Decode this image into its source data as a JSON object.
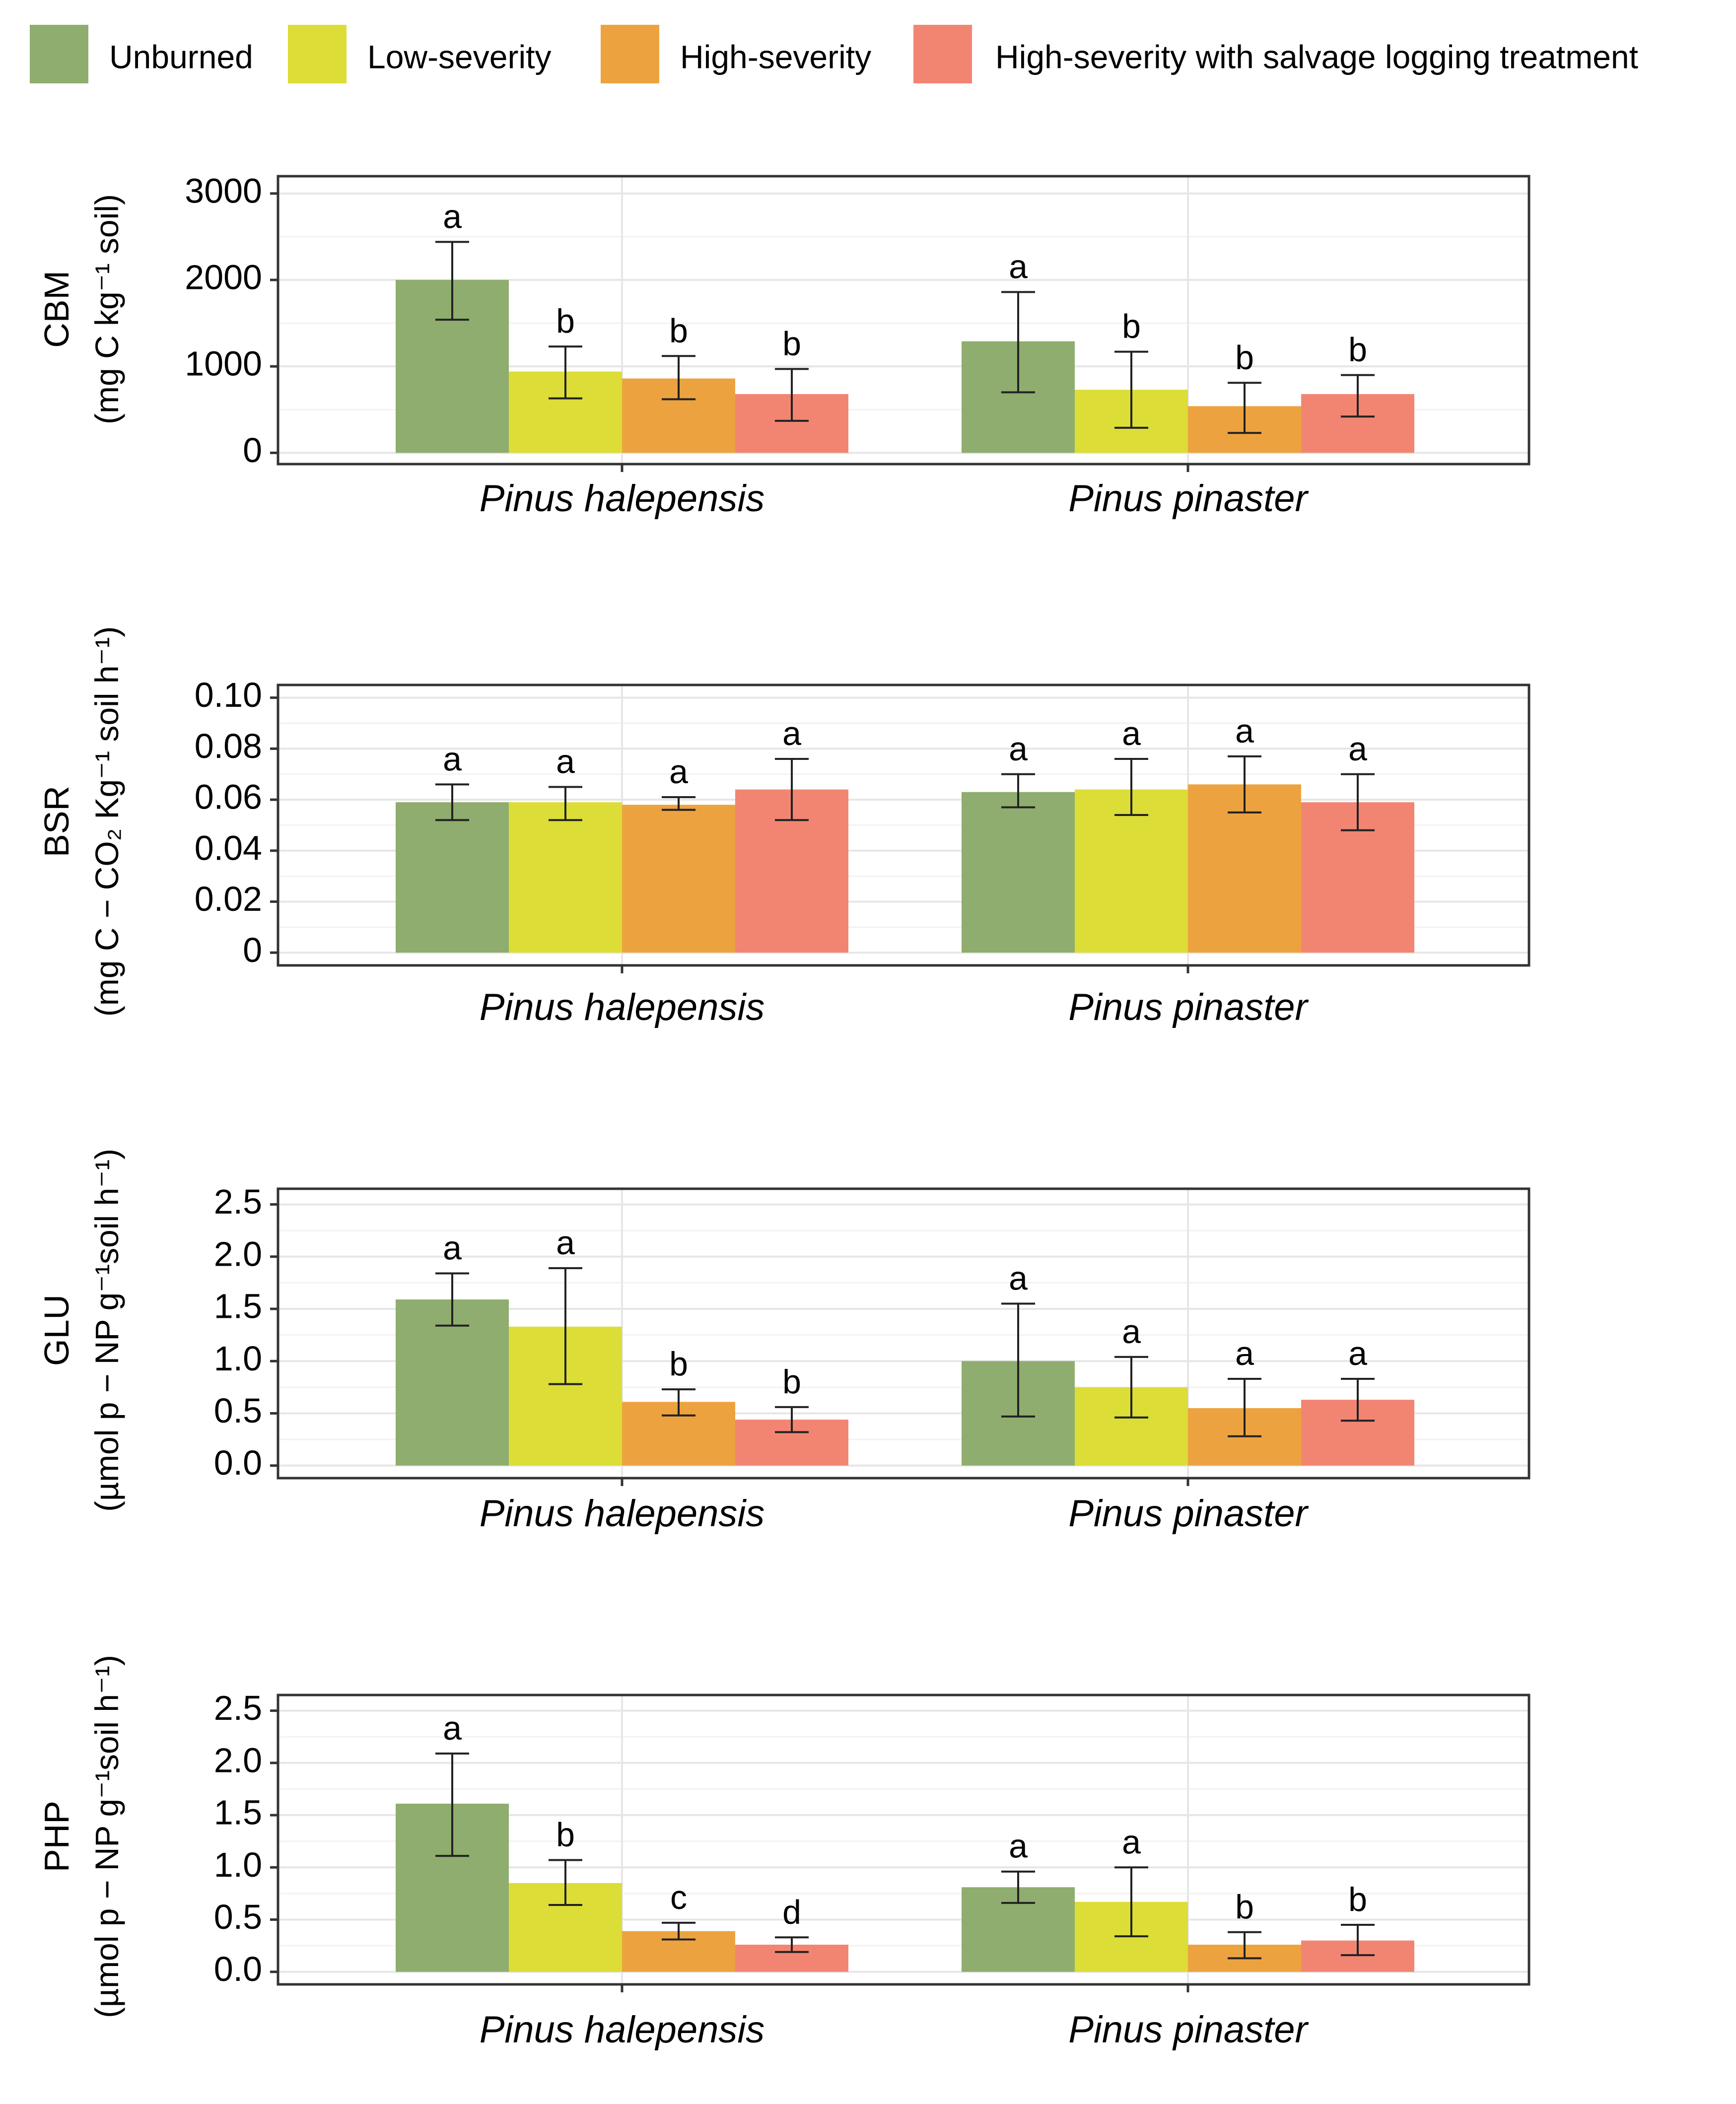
{
  "legend": [
    {
      "label": "Unburned",
      "color": "#8fad6e"
    },
    {
      "label": "Low-severity",
      "color": "#dcdd36"
    },
    {
      "label": "High-severity",
      "color": "#eca33f"
    },
    {
      "label": "High-severity with salvage logging treatment",
      "color": "#f28572"
    }
  ],
  "chart_data": [
    {
      "type": "bar",
      "ylabel_main": "CBM",
      "ylabel_unit": "(mg C kg⁻¹ soil)",
      "ylim": [
        -130,
        3200
      ],
      "yticks": [
        0,
        1000,
        2000,
        3000
      ],
      "ytick_labels": [
        "0",
        "1000",
        "2000",
        "3000"
      ],
      "categories": [
        "Pinus halepensis",
        "Pinus pinaster"
      ],
      "series": [
        {
          "name": "Unburned",
          "values": [
            2000,
            1290
          ],
          "err_low": [
            1540,
            700
          ],
          "err_high": [
            2440,
            1860
          ],
          "letters": [
            "a",
            "a"
          ]
        },
        {
          "name": "Low-severity",
          "values": [
            940,
            730
          ],
          "err_low": [
            630,
            290
          ],
          "err_high": [
            1230,
            1170
          ],
          "letters": [
            "b",
            "b"
          ]
        },
        {
          "name": "High-severity",
          "values": [
            860,
            540
          ],
          "err_low": [
            620,
            230
          ],
          "err_high": [
            1120,
            810
          ],
          "letters": [
            "b",
            "b"
          ]
        },
        {
          "name": "High-severity with salvage logging treatment",
          "values": [
            680,
            680
          ],
          "err_low": [
            370,
            420
          ],
          "err_high": [
            970,
            900
          ],
          "letters": [
            "b",
            "b"
          ]
        }
      ]
    },
    {
      "type": "bar",
      "ylabel_main": "BSR",
      "ylabel_unit": "(mg C − CO₂ Kg⁻¹ soil h⁻¹)",
      "ylim": [
        -0.005,
        0.105
      ],
      "yticks": [
        0,
        0.02,
        0.04,
        0.06,
        0.08,
        0.1
      ],
      "ytick_labels": [
        "0",
        "0.02",
        "0.04",
        "0.06",
        "0.08",
        "0.10"
      ],
      "categories": [
        "Pinus halepensis",
        "Pinus pinaster"
      ],
      "series": [
        {
          "name": "Unburned",
          "values": [
            0.059,
            0.063
          ],
          "err_low": [
            0.052,
            0.057
          ],
          "err_high": [
            0.066,
            0.07
          ],
          "letters": [
            "a",
            "a"
          ]
        },
        {
          "name": "Low-severity",
          "values": [
            0.059,
            0.064
          ],
          "err_low": [
            0.052,
            0.054
          ],
          "err_high": [
            0.065,
            0.076
          ],
          "letters": [
            "a",
            "a"
          ]
        },
        {
          "name": "High-severity",
          "values": [
            0.058,
            0.066
          ],
          "err_low": [
            0.056,
            0.055
          ],
          "err_high": [
            0.061,
            0.077
          ],
          "letters": [
            "a",
            "a"
          ]
        },
        {
          "name": "High-severity with salvage logging treatment",
          "values": [
            0.064,
            0.059
          ],
          "err_low": [
            0.052,
            0.048
          ],
          "err_high": [
            0.076,
            0.07
          ],
          "letters": [
            "a",
            "a"
          ]
        }
      ]
    },
    {
      "type": "bar",
      "ylabel_main": "GLU",
      "ylabel_unit": "(µmol p − NP g⁻¹soil h⁻¹)",
      "ylim": [
        -0.12,
        2.65
      ],
      "yticks": [
        0,
        0.5,
        1.0,
        1.5,
        2.0,
        2.5
      ],
      "ytick_labels": [
        "0.0",
        "0.5",
        "1.0",
        "1.5",
        "2.0",
        "2.5"
      ],
      "categories": [
        "Pinus halepensis",
        "Pinus pinaster"
      ],
      "series": [
        {
          "name": "Unburned",
          "values": [
            1.59,
            1.0
          ],
          "err_low": [
            1.34,
            0.47
          ],
          "err_high": [
            1.84,
            1.55
          ],
          "letters": [
            "a",
            "a"
          ]
        },
        {
          "name": "Low-severity",
          "values": [
            1.33,
            0.75
          ],
          "err_low": [
            0.78,
            0.46
          ],
          "err_high": [
            1.89,
            1.04
          ],
          "letters": [
            "a",
            "a"
          ]
        },
        {
          "name": "High-severity",
          "values": [
            0.61,
            0.55
          ],
          "err_low": [
            0.48,
            0.28
          ],
          "err_high": [
            0.73,
            0.83
          ],
          "letters": [
            "b",
            "a"
          ]
        },
        {
          "name": "High-severity with salvage logging treatment",
          "values": [
            0.44,
            0.63
          ],
          "err_low": [
            0.32,
            0.43
          ],
          "err_high": [
            0.56,
            0.83
          ],
          "letters": [
            "b",
            "a"
          ]
        }
      ]
    },
    {
      "type": "bar",
      "ylabel_main": "PHP",
      "ylabel_unit": "(µmol p − NP g⁻¹soil h⁻¹)",
      "ylim": [
        -0.12,
        2.65
      ],
      "yticks": [
        0,
        0.5,
        1.0,
        1.5,
        2.0,
        2.5
      ],
      "ytick_labels": [
        "0.0",
        "0.5",
        "1.0",
        "1.5",
        "2.0",
        "2.5"
      ],
      "categories": [
        "Pinus halepensis",
        "Pinus pinaster"
      ],
      "series": [
        {
          "name": "Unburned",
          "values": [
            1.61,
            0.81
          ],
          "err_low": [
            1.11,
            0.66
          ],
          "err_high": [
            2.09,
            0.96
          ],
          "letters": [
            "a",
            "a"
          ]
        },
        {
          "name": "Low-severity",
          "values": [
            0.85,
            0.67
          ],
          "err_low": [
            0.64,
            0.34
          ],
          "err_high": [
            1.07,
            1.0
          ],
          "letters": [
            "b",
            "a"
          ]
        },
        {
          "name": "High-severity",
          "values": [
            0.39,
            0.26
          ],
          "err_low": [
            0.31,
            0.13
          ],
          "err_high": [
            0.47,
            0.38
          ],
          "letters": [
            "c",
            "b"
          ]
        },
        {
          "name": "High-severity with salvage logging treatment",
          "values": [
            0.26,
            0.3
          ],
          "err_low": [
            0.19,
            0.16
          ],
          "err_high": [
            0.33,
            0.45
          ],
          "letters": [
            "d",
            "b"
          ]
        }
      ]
    }
  ]
}
